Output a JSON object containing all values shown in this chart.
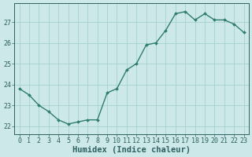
{
  "x": [
    0,
    1,
    2,
    3,
    4,
    5,
    6,
    7,
    8,
    9,
    10,
    11,
    12,
    13,
    14,
    15,
    16,
    17,
    18,
    19,
    20,
    21,
    22,
    23
  ],
  "y": [
    23.8,
    23.5,
    23.0,
    22.7,
    22.3,
    22.1,
    22.2,
    22.3,
    22.3,
    23.6,
    23.8,
    24.7,
    25.0,
    25.9,
    26.0,
    26.6,
    27.4,
    27.5,
    27.1,
    27.4,
    27.1,
    27.1,
    26.9,
    26.5
  ],
  "line_color": "#2e7d6e",
  "marker": "D",
  "marker_size": 2.0,
  "bg_color": "#cce8e8",
  "grid_color": "#9ecece",
  "tick_color": "#2e6060",
  "xlabel": "Humidex (Indice chaleur)",
  "xlabel_fontsize": 7.5,
  "ylim": [
    21.6,
    27.9
  ],
  "yticks": [
    22,
    23,
    24,
    25,
    26,
    27
  ],
  "xticks": [
    0,
    1,
    2,
    3,
    4,
    5,
    6,
    7,
    8,
    9,
    10,
    11,
    12,
    13,
    14,
    15,
    16,
    17,
    18,
    19,
    20,
    21,
    22,
    23
  ],
  "line_width": 1.0,
  "tick_fontsize": 6.0,
  "ylabel_fontsize": 6.5
}
